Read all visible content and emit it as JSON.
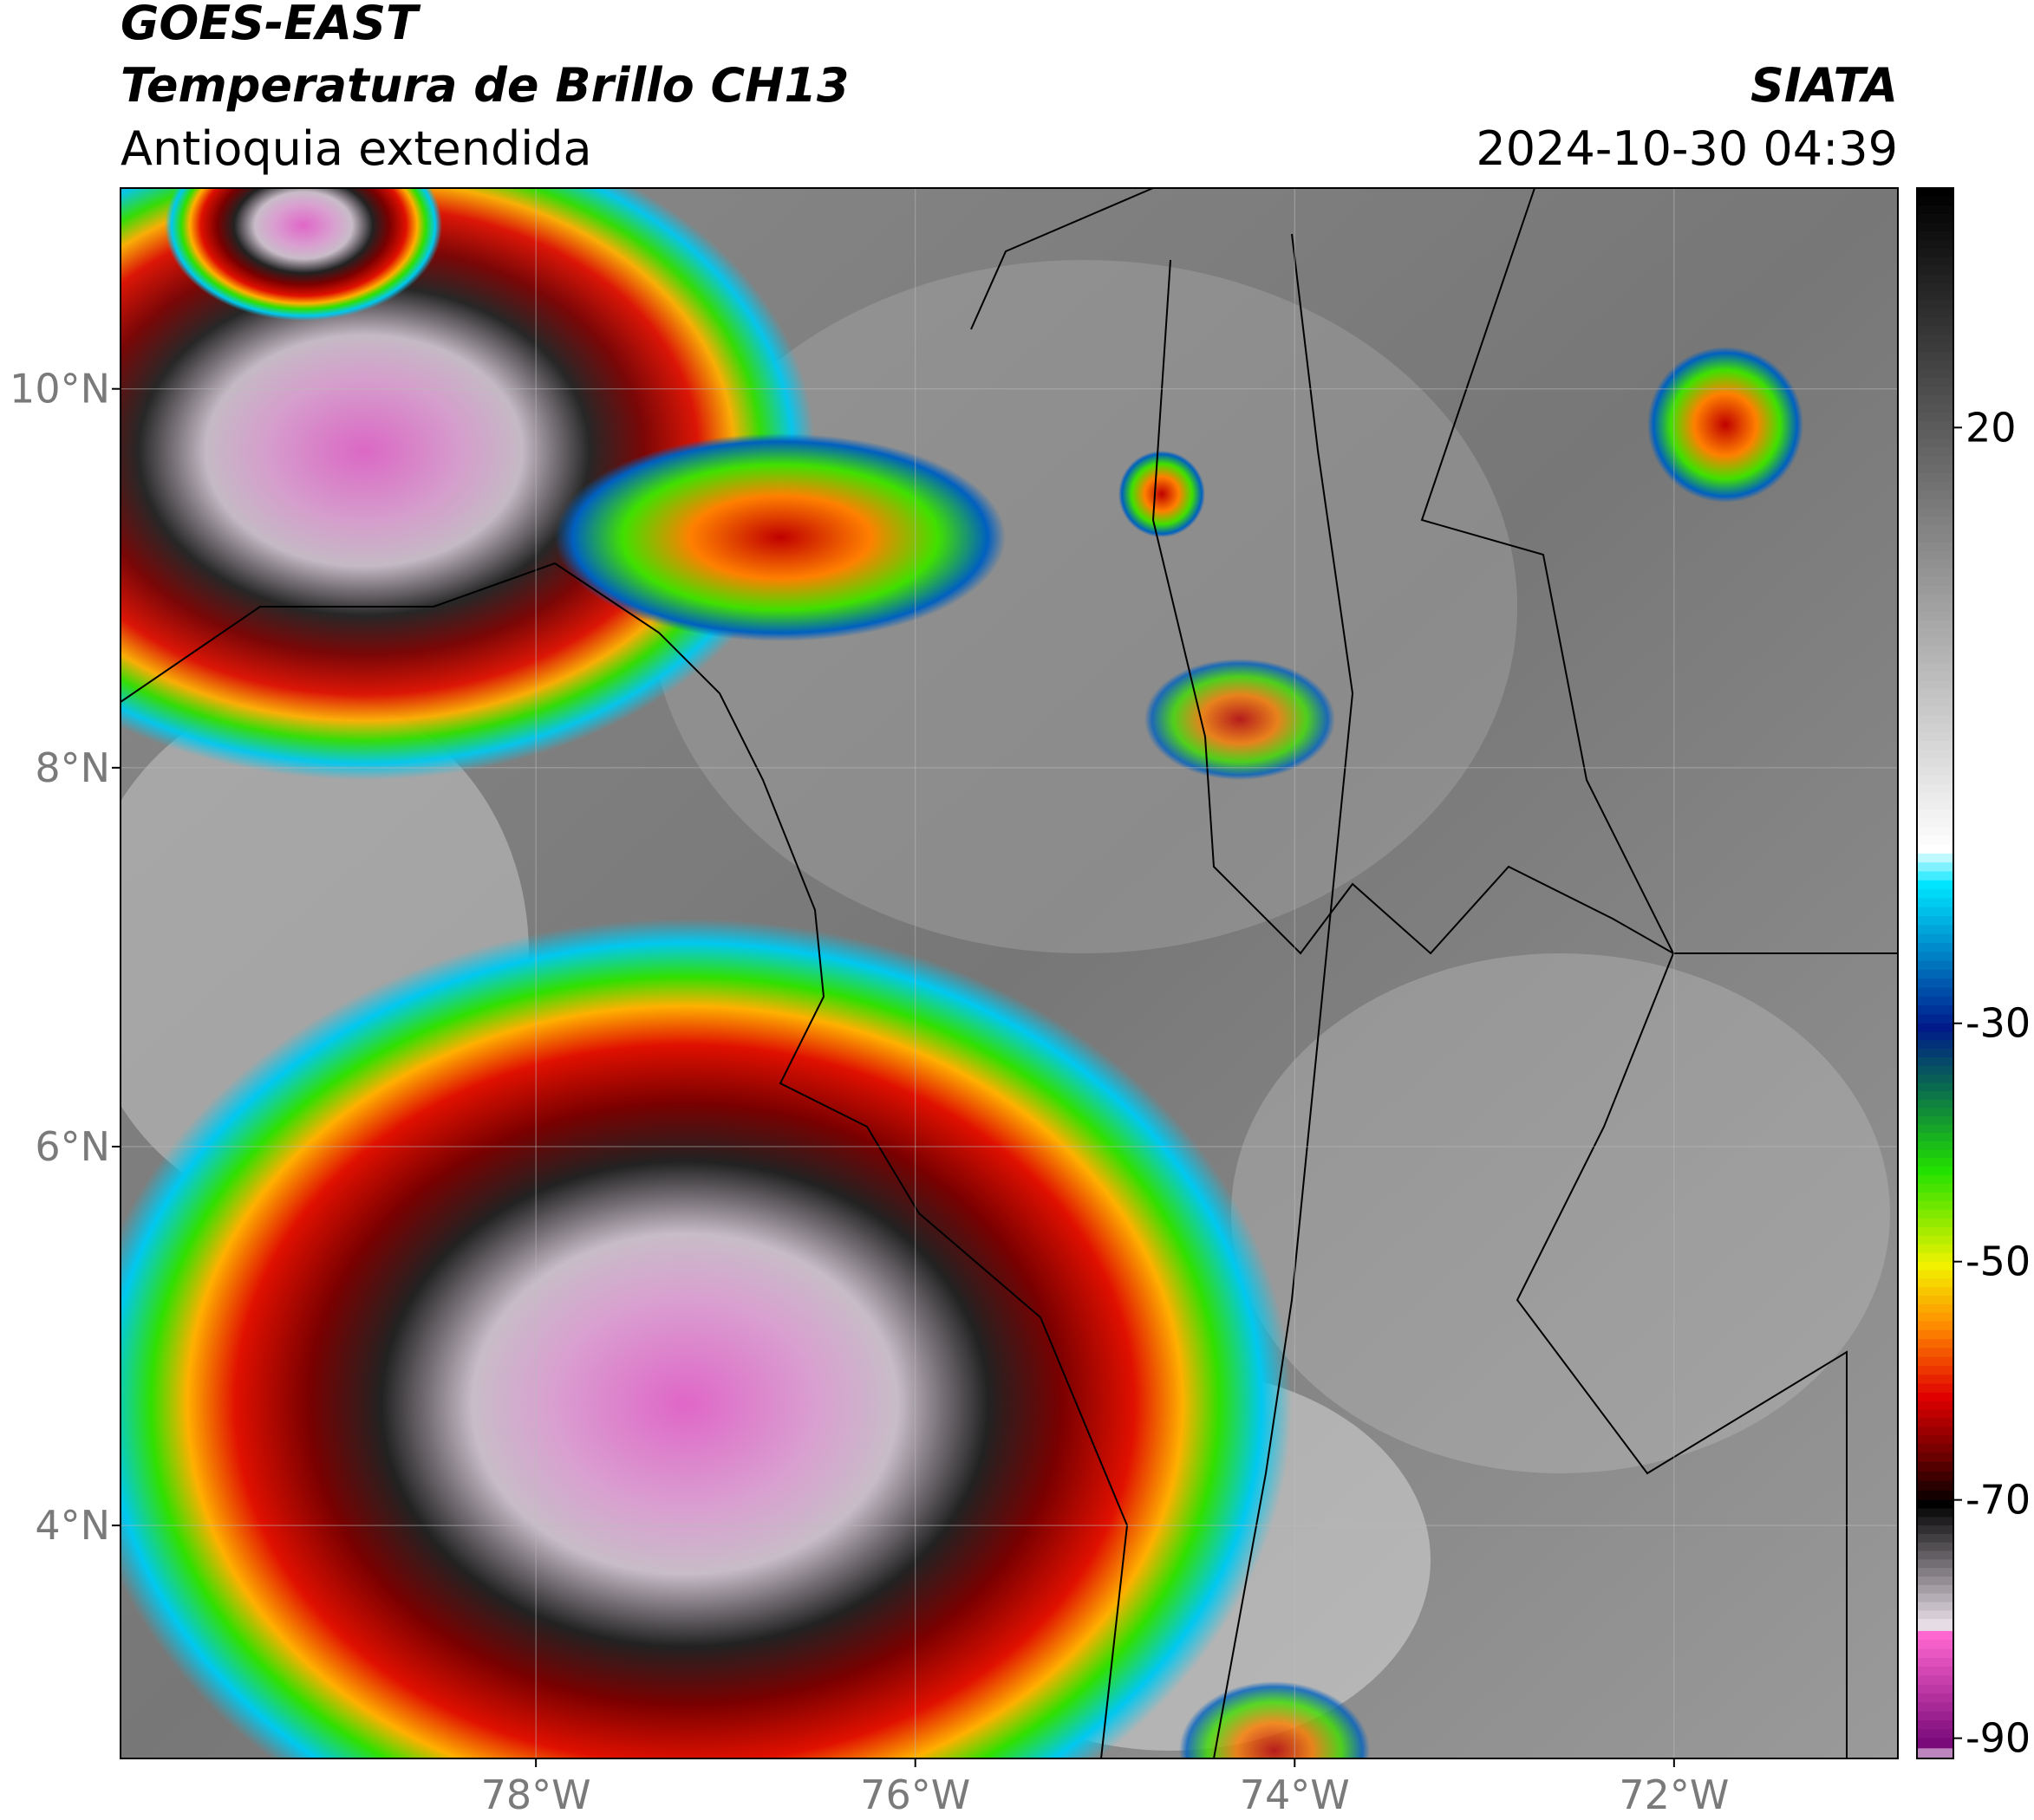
{
  "header": {
    "title": "GOES-EAST",
    "subtitle": "Temperatura de Brillo CH13",
    "region": "Antioquia extendida",
    "source": "SIATA",
    "datetime": "2024-10-30 04:39"
  },
  "map": {
    "xlim": [
      -80.19,
      -70.82
    ],
    "ylim": [
      2.77,
      11.06
    ],
    "grid": true,
    "xticks": [
      {
        "value": -78,
        "label": "78°W"
      },
      {
        "value": -76,
        "label": "76°W"
      },
      {
        "value": -74,
        "label": "74°W"
      },
      {
        "value": -72,
        "label": "72°W"
      }
    ],
    "yticks": [
      {
        "value": 4,
        "label": "4°N"
      },
      {
        "value": 6,
        "label": "6°N"
      },
      {
        "value": 8,
        "label": "8°N"
      },
      {
        "value": 10,
        "label": "10°N"
      }
    ]
  },
  "colorbar": {
    "lim": [
      -91.7,
      40.1
    ],
    "ticks": [
      20,
      -30,
      -50,
      -70,
      -90
    ],
    "stops": [
      {
        "value": 40.1,
        "color": "#000000"
      },
      {
        "value": -15,
        "color": "#ffffff"
      },
      {
        "value": -18,
        "color": "#00e5ff"
      },
      {
        "value": -30,
        "color": "#001a8a"
      },
      {
        "value": -35,
        "color": "#0a6a50"
      },
      {
        "value": -42,
        "color": "#22e000"
      },
      {
        "value": -50,
        "color": "#f2f200"
      },
      {
        "value": -55,
        "color": "#ff8c00"
      },
      {
        "value": -61,
        "color": "#e00000"
      },
      {
        "value": -66,
        "color": "#6a0000"
      },
      {
        "value": -70,
        "color": "#000000"
      },
      {
        "value": -80,
        "color": "#e6dce6"
      },
      {
        "value": -81,
        "color": "#ff66d0"
      },
      {
        "value": -90,
        "color": "#7a0a7a"
      },
      {
        "value": -91.7,
        "color": "#ffffff"
      }
    ]
  }
}
